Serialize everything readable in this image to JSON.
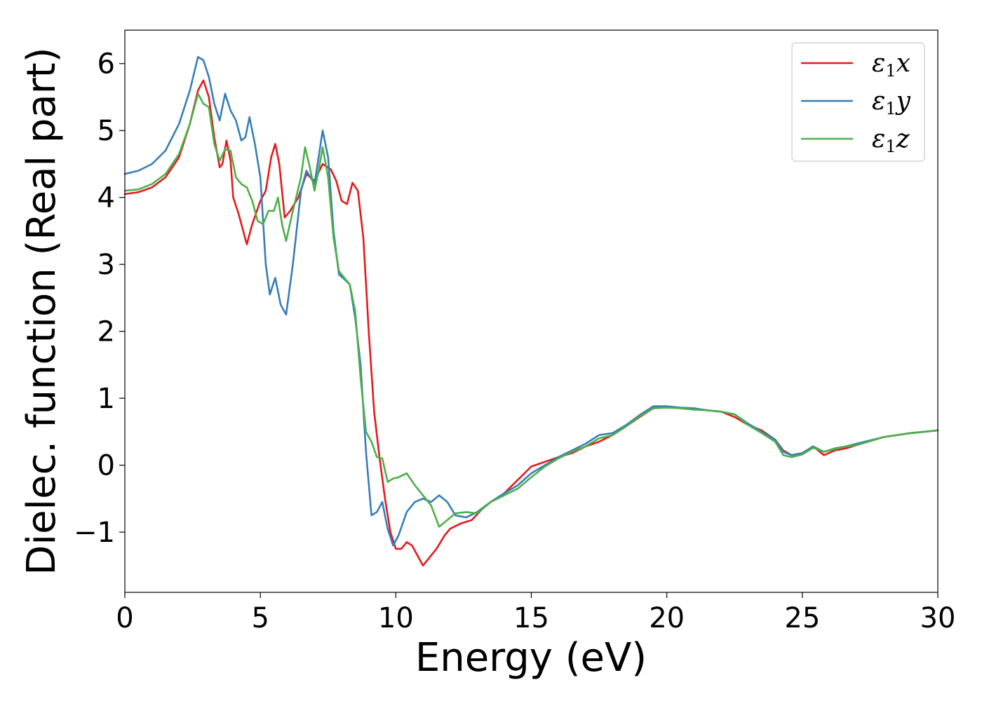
{
  "chart_data": {
    "type": "line",
    "title": "",
    "xlabel": "Energy (eV)",
    "ylabel": "Dielec. function (Real part)",
    "xlim": [
      0,
      30
    ],
    "ylim": [
      -1.9,
      6.5
    ],
    "x_ticks": [
      0,
      5,
      10,
      15,
      20,
      25,
      30
    ],
    "x_tick_labels": [
      "0",
      "5",
      "10",
      "15",
      "20",
      "25",
      "30"
    ],
    "y_ticks": [
      -1,
      0,
      1,
      2,
      3,
      4,
      5,
      6
    ],
    "y_tick_labels": [
      "−1",
      "0",
      "1",
      "2",
      "3",
      "4",
      "5",
      "6"
    ],
    "grid": false,
    "legend_position": "top-right",
    "series": [
      {
        "name": "ε1x",
        "legend_symbol": "ε",
        "legend_sub": "1",
        "legend_suffix": "x",
        "color": "#e41a1c",
        "points": [
          [
            0,
            4.05
          ],
          [
            0.5,
            4.08
          ],
          [
            1.0,
            4.15
          ],
          [
            1.5,
            4.3
          ],
          [
            2.0,
            4.6
          ],
          [
            2.4,
            5.1
          ],
          [
            2.7,
            5.6
          ],
          [
            2.9,
            5.75
          ],
          [
            3.1,
            5.5
          ],
          [
            3.3,
            4.9
          ],
          [
            3.5,
            4.45
          ],
          [
            3.6,
            4.5
          ],
          [
            3.75,
            4.85
          ],
          [
            3.9,
            4.55
          ],
          [
            4.0,
            4.0
          ],
          [
            4.2,
            3.75
          ],
          [
            4.4,
            3.45
          ],
          [
            4.5,
            3.3
          ],
          [
            4.7,
            3.6
          ],
          [
            5.0,
            3.95
          ],
          [
            5.2,
            4.1
          ],
          [
            5.4,
            4.6
          ],
          [
            5.55,
            4.8
          ],
          [
            5.7,
            4.5
          ],
          [
            5.9,
            3.7
          ],
          [
            6.1,
            3.8
          ],
          [
            6.4,
            4.0
          ],
          [
            6.7,
            4.35
          ],
          [
            7.0,
            4.25
          ],
          [
            7.3,
            4.5
          ],
          [
            7.6,
            4.42
          ],
          [
            7.8,
            4.25
          ],
          [
            8.0,
            3.95
          ],
          [
            8.2,
            3.9
          ],
          [
            8.4,
            4.22
          ],
          [
            8.6,
            4.1
          ],
          [
            8.8,
            3.4
          ],
          [
            9.0,
            2.0
          ],
          [
            9.2,
            0.8
          ],
          [
            9.4,
            0.1
          ],
          [
            9.6,
            -0.5
          ],
          [
            9.8,
            -1.0
          ],
          [
            10.0,
            -1.25
          ],
          [
            10.2,
            -1.25
          ],
          [
            10.4,
            -1.15
          ],
          [
            10.6,
            -1.2
          ],
          [
            10.8,
            -1.35
          ],
          [
            11.0,
            -1.5
          ],
          [
            11.2,
            -1.4
          ],
          [
            11.5,
            -1.25
          ],
          [
            11.8,
            -1.05
          ],
          [
            12.0,
            -0.95
          ],
          [
            12.4,
            -0.87
          ],
          [
            12.8,
            -0.82
          ],
          [
            13.2,
            -0.65
          ],
          [
            13.5,
            -0.55
          ],
          [
            14.0,
            -0.42
          ],
          [
            14.5,
            -0.22
          ],
          [
            15.0,
            -0.02
          ],
          [
            15.5,
            0.05
          ],
          [
            16.0,
            0.12
          ],
          [
            16.5,
            0.18
          ],
          [
            17.0,
            0.28
          ],
          [
            17.5,
            0.35
          ],
          [
            18.0,
            0.45
          ],
          [
            18.5,
            0.58
          ],
          [
            19.0,
            0.72
          ],
          [
            19.5,
            0.85
          ],
          [
            20.0,
            0.87
          ],
          [
            20.5,
            0.86
          ],
          [
            21.0,
            0.84
          ],
          [
            21.5,
            0.82
          ],
          [
            22.0,
            0.8
          ],
          [
            22.5,
            0.72
          ],
          [
            23.0,
            0.6
          ],
          [
            23.5,
            0.52
          ],
          [
            24.0,
            0.38
          ],
          [
            24.3,
            0.22
          ],
          [
            24.6,
            0.15
          ],
          [
            25.0,
            0.18
          ],
          [
            25.4,
            0.28
          ],
          [
            25.8,
            0.15
          ],
          [
            26.2,
            0.22
          ],
          [
            26.6,
            0.25
          ],
          [
            27.0,
            0.3
          ],
          [
            27.5,
            0.36
          ],
          [
            28.0,
            0.42
          ],
          [
            28.5,
            0.45
          ],
          [
            29.0,
            0.48
          ],
          [
            29.5,
            0.5
          ],
          [
            30.0,
            0.52
          ]
        ]
      },
      {
        "name": "ε1y",
        "legend_symbol": "ε",
        "legend_sub": "1",
        "legend_suffix": "y",
        "color": "#377eb8",
        "points": [
          [
            0,
            4.35
          ],
          [
            0.5,
            4.4
          ],
          [
            1.0,
            4.5
          ],
          [
            1.5,
            4.7
          ],
          [
            2.0,
            5.1
          ],
          [
            2.4,
            5.6
          ],
          [
            2.7,
            6.1
          ],
          [
            2.9,
            6.05
          ],
          [
            3.1,
            5.8
          ],
          [
            3.3,
            5.4
          ],
          [
            3.5,
            5.15
          ],
          [
            3.7,
            5.55
          ],
          [
            3.9,
            5.3
          ],
          [
            4.1,
            5.15
          ],
          [
            4.3,
            4.85
          ],
          [
            4.45,
            4.9
          ],
          [
            4.6,
            5.2
          ],
          [
            4.8,
            4.8
          ],
          [
            5.0,
            4.3
          ],
          [
            5.2,
            3.0
          ],
          [
            5.35,
            2.55
          ],
          [
            5.55,
            2.8
          ],
          [
            5.75,
            2.4
          ],
          [
            5.95,
            2.25
          ],
          [
            6.2,
            3.0
          ],
          [
            6.5,
            4.1
          ],
          [
            6.7,
            4.4
          ],
          [
            7.0,
            4.2
          ],
          [
            7.3,
            5.0
          ],
          [
            7.5,
            4.6
          ],
          [
            7.7,
            3.5
          ],
          [
            7.9,
            2.85
          ],
          [
            8.1,
            2.78
          ],
          [
            8.3,
            2.7
          ],
          [
            8.5,
            2.2
          ],
          [
            8.7,
            1.5
          ],
          [
            8.9,
            0.2
          ],
          [
            9.1,
            -0.75
          ],
          [
            9.3,
            -0.7
          ],
          [
            9.5,
            -0.55
          ],
          [
            9.7,
            -0.95
          ],
          [
            9.9,
            -1.2
          ],
          [
            10.1,
            -1.05
          ],
          [
            10.4,
            -0.7
          ],
          [
            10.7,
            -0.55
          ],
          [
            11.0,
            -0.5
          ],
          [
            11.3,
            -0.55
          ],
          [
            11.6,
            -0.45
          ],
          [
            11.9,
            -0.55
          ],
          [
            12.2,
            -0.75
          ],
          [
            12.6,
            -0.78
          ],
          [
            13.0,
            -0.7
          ],
          [
            13.5,
            -0.55
          ],
          [
            14.0,
            -0.42
          ],
          [
            14.5,
            -0.3
          ],
          [
            15.0,
            -0.12
          ],
          [
            15.5,
            0.0
          ],
          [
            16.0,
            0.12
          ],
          [
            16.5,
            0.22
          ],
          [
            17.0,
            0.32
          ],
          [
            17.5,
            0.45
          ],
          [
            18.0,
            0.48
          ],
          [
            18.5,
            0.6
          ],
          [
            19.0,
            0.75
          ],
          [
            19.5,
            0.88
          ],
          [
            20.0,
            0.88
          ],
          [
            20.5,
            0.86
          ],
          [
            21.0,
            0.85
          ],
          [
            21.5,
            0.82
          ],
          [
            22.0,
            0.8
          ],
          [
            22.5,
            0.76
          ],
          [
            23.0,
            0.62
          ],
          [
            23.5,
            0.5
          ],
          [
            24.0,
            0.38
          ],
          [
            24.3,
            0.2
          ],
          [
            24.6,
            0.15
          ],
          [
            25.0,
            0.18
          ],
          [
            25.4,
            0.28
          ],
          [
            25.8,
            0.2
          ],
          [
            26.2,
            0.25
          ],
          [
            26.6,
            0.28
          ],
          [
            27.0,
            0.32
          ],
          [
            27.5,
            0.37
          ],
          [
            28.0,
            0.42
          ],
          [
            28.5,
            0.45
          ],
          [
            29.0,
            0.48
          ],
          [
            29.5,
            0.5
          ],
          [
            30.0,
            0.52
          ]
        ]
      },
      {
        "name": "ε1z",
        "legend_symbol": "ε",
        "legend_sub": "1",
        "legend_suffix": "z",
        "color": "#4daf4a",
        "points": [
          [
            0,
            4.1
          ],
          [
            0.5,
            4.12
          ],
          [
            1.0,
            4.2
          ],
          [
            1.5,
            4.35
          ],
          [
            2.0,
            4.65
          ],
          [
            2.4,
            5.1
          ],
          [
            2.7,
            5.55
          ],
          [
            2.9,
            5.4
          ],
          [
            3.1,
            5.35
          ],
          [
            3.3,
            4.8
          ],
          [
            3.5,
            4.55
          ],
          [
            3.7,
            4.72
          ],
          [
            3.9,
            4.7
          ],
          [
            4.1,
            4.3
          ],
          [
            4.3,
            4.2
          ],
          [
            4.5,
            4.15
          ],
          [
            4.7,
            3.95
          ],
          [
            4.9,
            3.65
          ],
          [
            5.1,
            3.6
          ],
          [
            5.3,
            3.8
          ],
          [
            5.5,
            3.8
          ],
          [
            5.65,
            4.0
          ],
          [
            5.8,
            3.6
          ],
          [
            5.95,
            3.35
          ],
          [
            6.2,
            3.8
          ],
          [
            6.5,
            4.3
          ],
          [
            6.65,
            4.75
          ],
          [
            6.8,
            4.5
          ],
          [
            7.0,
            4.1
          ],
          [
            7.15,
            4.4
          ],
          [
            7.3,
            4.75
          ],
          [
            7.5,
            4.3
          ],
          [
            7.7,
            3.4
          ],
          [
            7.9,
            2.9
          ],
          [
            8.1,
            2.8
          ],
          [
            8.3,
            2.7
          ],
          [
            8.5,
            2.3
          ],
          [
            8.7,
            1.3
          ],
          [
            8.9,
            0.5
          ],
          [
            9.1,
            0.35
          ],
          [
            9.3,
            0.12
          ],
          [
            9.5,
            0.1
          ],
          [
            9.7,
            -0.25
          ],
          [
            9.9,
            -0.2
          ],
          [
            10.1,
            -0.18
          ],
          [
            10.4,
            -0.12
          ],
          [
            10.7,
            -0.3
          ],
          [
            11.0,
            -0.45
          ],
          [
            11.3,
            -0.6
          ],
          [
            11.6,
            -0.92
          ],
          [
            11.9,
            -0.82
          ],
          [
            12.2,
            -0.72
          ],
          [
            12.6,
            -0.7
          ],
          [
            13.0,
            -0.72
          ],
          [
            13.5,
            -0.55
          ],
          [
            14.0,
            -0.45
          ],
          [
            14.5,
            -0.35
          ],
          [
            15.0,
            -0.18
          ],
          [
            15.5,
            -0.02
          ],
          [
            16.0,
            0.1
          ],
          [
            16.5,
            0.2
          ],
          [
            17.0,
            0.28
          ],
          [
            17.5,
            0.4
          ],
          [
            18.0,
            0.45
          ],
          [
            18.5,
            0.58
          ],
          [
            19.0,
            0.73
          ],
          [
            19.5,
            0.85
          ],
          [
            20.0,
            0.86
          ],
          [
            20.5,
            0.85
          ],
          [
            21.0,
            0.83
          ],
          [
            21.5,
            0.82
          ],
          [
            22.0,
            0.8
          ],
          [
            22.5,
            0.76
          ],
          [
            23.0,
            0.6
          ],
          [
            23.5,
            0.48
          ],
          [
            24.0,
            0.35
          ],
          [
            24.3,
            0.15
          ],
          [
            24.6,
            0.12
          ],
          [
            25.0,
            0.16
          ],
          [
            25.4,
            0.26
          ],
          [
            25.8,
            0.2
          ],
          [
            26.2,
            0.24
          ],
          [
            26.6,
            0.28
          ],
          [
            27.0,
            0.3
          ],
          [
            27.5,
            0.36
          ],
          [
            28.0,
            0.42
          ],
          [
            28.5,
            0.45
          ],
          [
            29.0,
            0.48
          ],
          [
            29.5,
            0.5
          ],
          [
            30.0,
            0.52
          ]
        ]
      }
    ]
  }
}
